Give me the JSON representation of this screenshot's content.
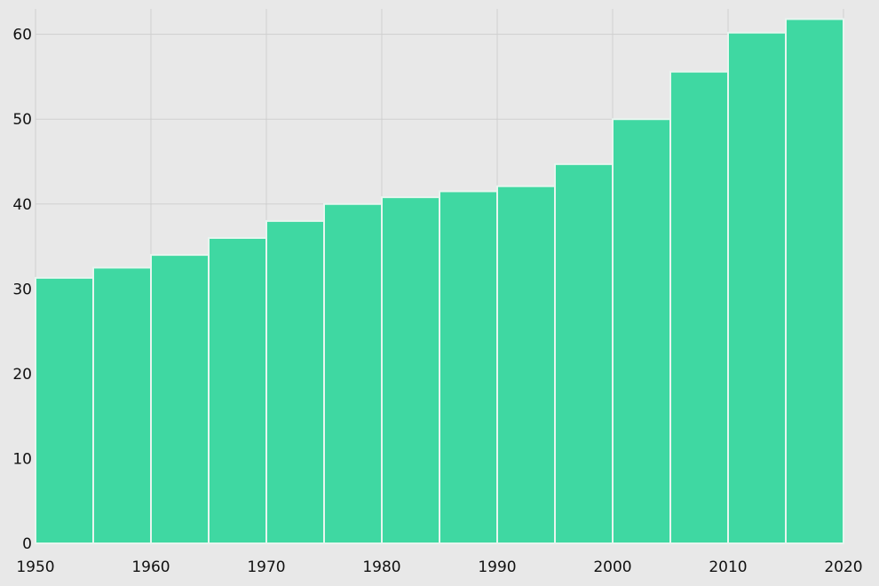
{
  "chart_data": {
    "type": "bar",
    "title": "",
    "xlabel": "",
    "ylabel": "",
    "categories": [
      "1950",
      "1955",
      "1960",
      "1965",
      "1970",
      "1975",
      "1980",
      "1985",
      "1990",
      "1995",
      "2000",
      "2005",
      "2010",
      "2015"
    ],
    "values": [
      31.3,
      32.5,
      34.0,
      36.0,
      38.0,
      40.0,
      40.8,
      41.5,
      42.1,
      44.7,
      50.0,
      55.6,
      60.2,
      61.8
    ],
    "bin_width": 5,
    "xlim": [
      1950,
      2020
    ],
    "ylim": [
      0,
      63
    ],
    "x_ticks": [
      "1950",
      "1960",
      "1970",
      "1980",
      "1990",
      "2000",
      "2010",
      "2020"
    ],
    "y_ticks": [
      "0",
      "10",
      "20",
      "30",
      "40",
      "50",
      "60"
    ],
    "grid": true,
    "legend": "none",
    "bar_color": "#3fd8a2",
    "bar_edge_color": "#e8f5ef",
    "background_color": "#e8e8e8",
    "grid_color": "#cfcfcf"
  }
}
